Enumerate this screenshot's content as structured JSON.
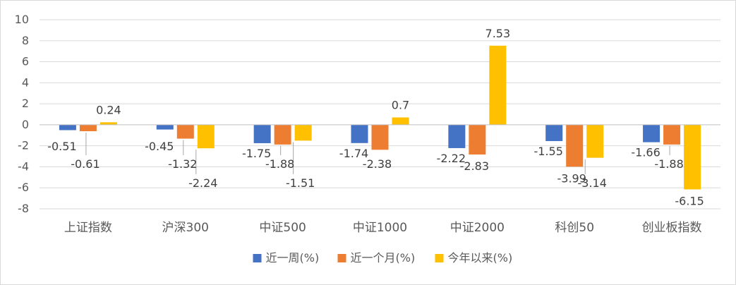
{
  "chart_data": {
    "type": "bar",
    "title": "",
    "xlabel": "",
    "ylabel": "",
    "categories": [
      "上证指数",
      "沪深300",
      "中证500",
      "中证1000",
      "中证2000",
      "科创50",
      "创业板指数"
    ],
    "series": [
      {
        "name": "近一周(%)",
        "color": "#4472C4",
        "values": [
          -0.51,
          -0.45,
          -1.75,
          -1.74,
          -2.22,
          -1.55,
          -1.66
        ]
      },
      {
        "name": "近一个月(%)",
        "color": "#ED7D31",
        "values": [
          -0.61,
          -1.32,
          -1.88,
          -2.38,
          -2.83,
          -3.99,
          -1.88
        ]
      },
      {
        "name": "今年以来(%)",
        "color": "#FFC000",
        "values": [
          0.24,
          -2.24,
          -1.51,
          0.7,
          7.53,
          -3.14,
          -6.15
        ]
      }
    ],
    "data_labels": [
      [
        "-0.51",
        "-0.45",
        "-1.75",
        "-1.74",
        "-2.22",
        "-1.55",
        "-1.66"
      ],
      [
        "-0.61",
        "-1.32",
        "-1.88",
        "-2.38",
        "-2.83",
        "-3.99",
        "-1.88"
      ],
      [
        "0.24",
        "-2.24",
        "-1.51",
        "0.7",
        "7.53",
        "-3.14",
        "-6.15"
      ]
    ],
    "yticks": [
      "10",
      "8",
      "6",
      "4",
      "2",
      "0",
      "-2",
      "-4",
      "-6",
      "-8"
    ],
    "ylim": [
      -8,
      10
    ],
    "ystep": 2,
    "grid": true,
    "legend_position": "bottom",
    "colors": {
      "grid": "#d9d9d9",
      "axis": "#bfbfbf",
      "leader": "#a6a6a6",
      "frame": "#d9d9d9"
    }
  }
}
